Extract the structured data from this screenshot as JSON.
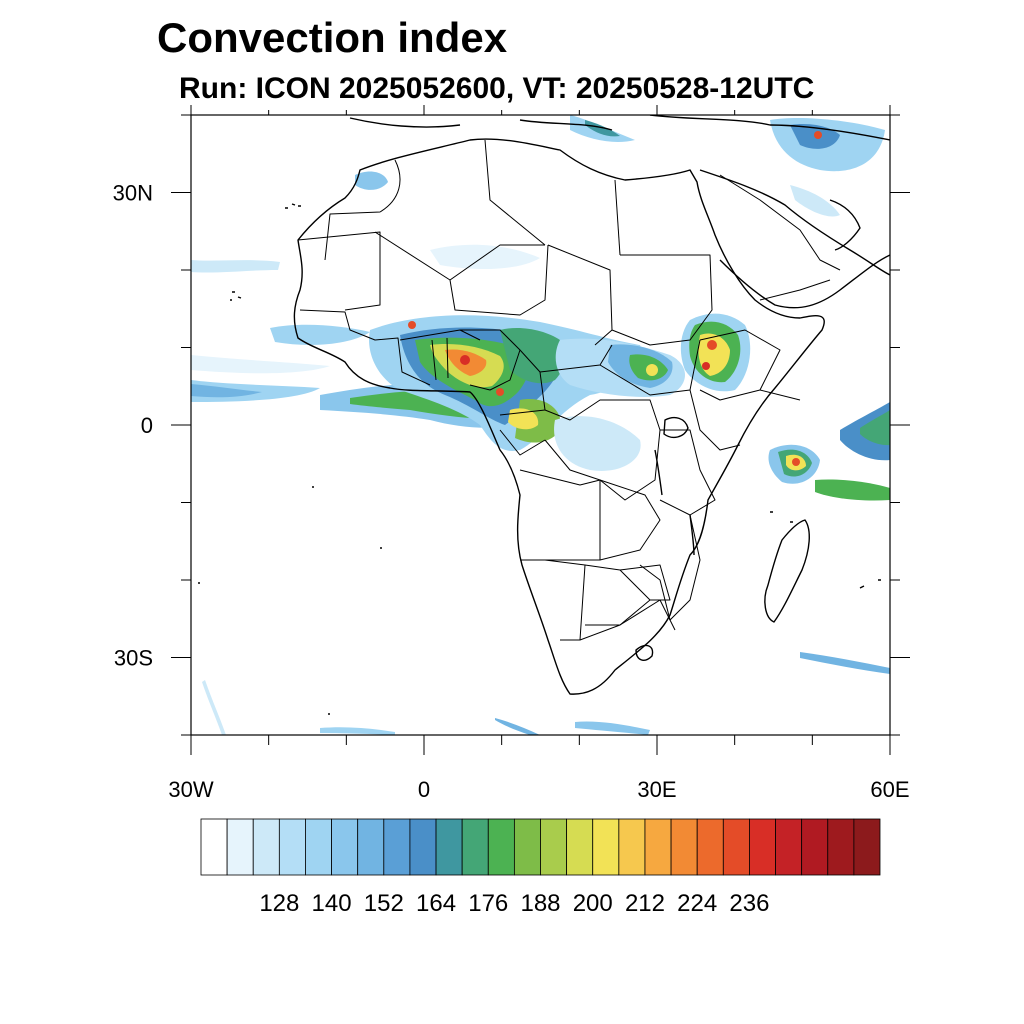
{
  "title": "Convection index",
  "subtitle": "Run: ICON 2025052600,  VT: 20250528-12UTC",
  "map": {
    "lon_range": [
      -30,
      60
    ],
    "lat_range": [
      -40,
      40
    ],
    "lat_ticks": [
      {
        "value": 30,
        "label": "30N"
      },
      {
        "value": 0,
        "label": "0"
      },
      {
        "value": -30,
        "label": "30S"
      }
    ],
    "lon_ticks": [
      {
        "value": -30,
        "label": "30W"
      },
      {
        "value": 0,
        "label": "0"
      },
      {
        "value": 30,
        "label": "30E"
      },
      {
        "value": 60,
        "label": "60E"
      }
    ],
    "field": "convection index",
    "region": "Africa"
  },
  "colorbar": {
    "labels": [
      "128",
      "140",
      "152",
      "164",
      "176",
      "188",
      "200",
      "212",
      "224",
      "236"
    ],
    "colors": [
      "#ffffff",
      "#e6f4fc",
      "#cde9f8",
      "#b4def6",
      "#9fd4f2",
      "#8ac6ec",
      "#71b4e2",
      "#5a9fd6",
      "#4a8fc8",
      "#3f97a0",
      "#44a676",
      "#4cb252",
      "#7ebc48",
      "#a9cc4c",
      "#d6dc52",
      "#f2e256",
      "#f6c84e",
      "#f6a840",
      "#f28a34",
      "#ec6a2c",
      "#e44c28",
      "#d82e26",
      "#c42226",
      "#b01a22",
      "#9e1a1e",
      "#8c1a1c"
    ]
  }
}
